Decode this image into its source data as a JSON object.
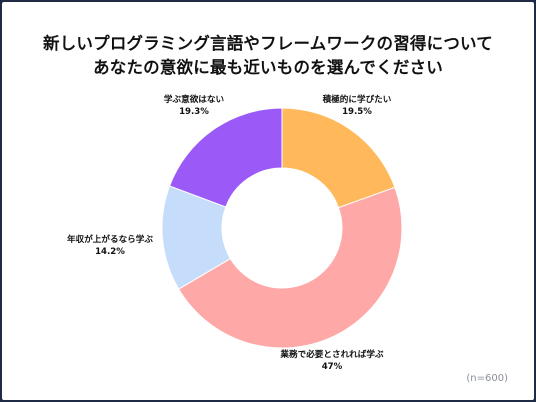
{
  "title_lines": [
    "新しいプログラミング言語やフレームワークの習得について",
    "あなたの意欲に最も近いものを選んでください"
  ],
  "sample_note": "(n=600)",
  "chart_data": {
    "type": "pie",
    "style": "donut",
    "slices": [
      {
        "label": "積極的に学びたい",
        "value": 19.5,
        "value_label": "19.5%",
        "color": "#ffb95a"
      },
      {
        "label": "業務で必要とされれば学ぶ",
        "value": 47,
        "value_label": "47%",
        "color": "#ffa8a8"
      },
      {
        "label": "年収が上がるなら学ぶ",
        "value": 14.2,
        "value_label": "14.2%",
        "color": "#c5dcfa"
      },
      {
        "label": "学ぶ意欲はない",
        "value": 19.3,
        "value_label": "19.3%",
        "color": "#9b59f7"
      }
    ]
  }
}
